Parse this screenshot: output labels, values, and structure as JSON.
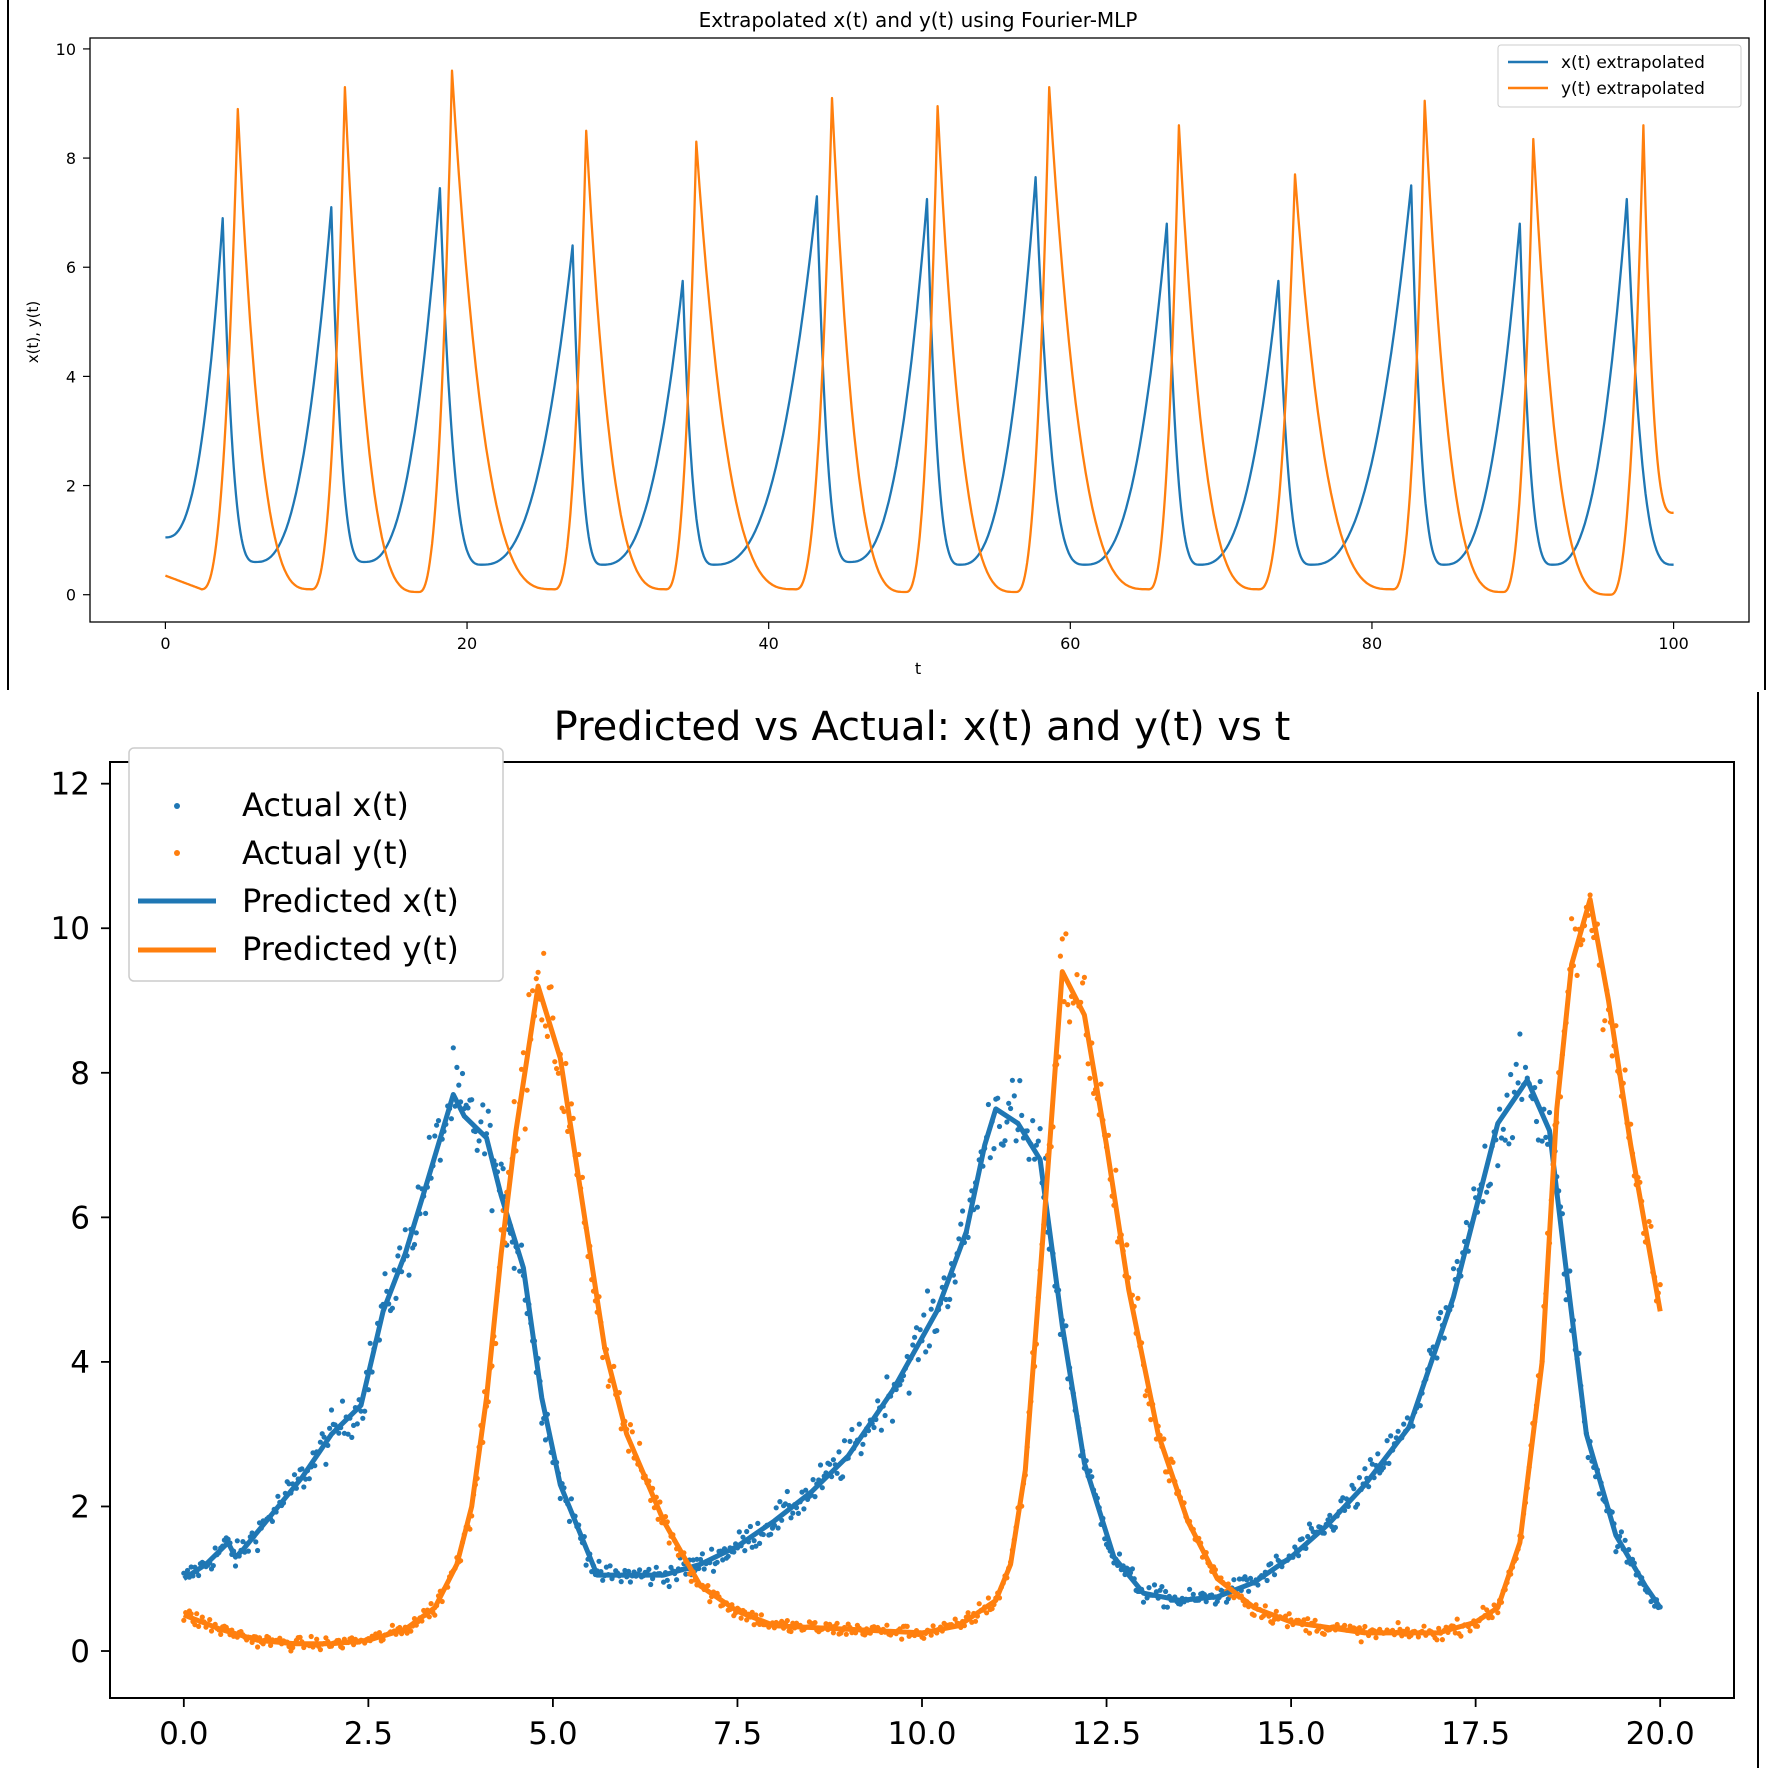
{
  "colors": {
    "series1": "#1f77b4",
    "series2": "#ff7f0e",
    "axis": "#000000",
    "legend_border": "#cccccc"
  },
  "chart_data": [
    {
      "type": "line",
      "title": "Extrapolated x(t) and y(t) using Fourier-MLP",
      "xlabel": "t",
      "ylabel": "x(t), y(t)",
      "xlim": [
        -5,
        105
      ],
      "ylim": [
        -0.5,
        10.2
      ],
      "xticks": [
        "0",
        "20",
        "40",
        "60",
        "80",
        "100"
      ],
      "yticks": [
        "0",
        "2",
        "4",
        "6",
        "8",
        "10"
      ],
      "grid": false,
      "legend_position": "top-right",
      "series": [
        {
          "name": "x(t) extrapolated",
          "peaks": [
            [
              3.8,
              6.9
            ],
            [
              11.0,
              7.1
            ],
            [
              18.2,
              7.45
            ],
            [
              27.0,
              6.4
            ],
            [
              34.3,
              5.75
            ],
            [
              43.2,
              7.3
            ],
            [
              50.5,
              7.25
            ],
            [
              57.7,
              7.65
            ],
            [
              66.4,
              6.8
            ],
            [
              73.8,
              5.75
            ],
            [
              82.6,
              7.5
            ],
            [
              89.8,
              6.8
            ],
            [
              96.9,
              7.25
            ]
          ],
          "troughs": [
            [
              0.0,
              1.05
            ],
            [
              6.0,
              0.6
            ],
            [
              13.2,
              0.6
            ],
            [
              21.0,
              0.55
            ],
            [
              29.0,
              0.55
            ],
            [
              36.4,
              0.55
            ],
            [
              45.4,
              0.6
            ],
            [
              52.7,
              0.55
            ],
            [
              61.0,
              0.55
            ],
            [
              68.6,
              0.55
            ],
            [
              76.0,
              0.55
            ],
            [
              84.8,
              0.55
            ],
            [
              92.0,
              0.55
            ],
            [
              100.0,
              0.55
            ]
          ]
        },
        {
          "name": "y(t) extrapolated",
          "peaks": [
            [
              4.8,
              8.9
            ],
            [
              11.9,
              9.3
            ],
            [
              19.0,
              9.6
            ],
            [
              27.9,
              8.5
            ],
            [
              35.2,
              8.3
            ],
            [
              44.2,
              9.1
            ],
            [
              51.2,
              8.95
            ],
            [
              58.6,
              9.3
            ],
            [
              67.2,
              8.6
            ],
            [
              74.9,
              7.7
            ],
            [
              83.5,
              9.05
            ],
            [
              90.7,
              8.35
            ],
            [
              98.0,
              8.6
            ]
          ],
          "troughs": [
            [
              0.0,
              0.35
            ],
            [
              2.4,
              0.1
            ],
            [
              9.7,
              0.1
            ],
            [
              16.8,
              0.05
            ],
            [
              25.8,
              0.1
            ],
            [
              33.2,
              0.1
            ],
            [
              41.8,
              0.1
            ],
            [
              49.1,
              0.05
            ],
            [
              56.4,
              0.05
            ],
            [
              65.2,
              0.1
            ],
            [
              72.5,
              0.1
            ],
            [
              81.4,
              0.1
            ],
            [
              88.7,
              0.05
            ],
            [
              95.8,
              0.0
            ],
            [
              100.0,
              1.5
            ]
          ]
        }
      ]
    },
    {
      "type": "scatter",
      "title": "Predicted vs Actual: x(t) and y(t) vs t",
      "xlabel": "",
      "ylabel": "",
      "xlim": [
        -1.0,
        21.0
      ],
      "ylim": [
        -0.65,
        12.3
      ],
      "xticks": [
        "0.0",
        "2.5",
        "5.0",
        "7.5",
        "10.0",
        "12.5",
        "15.0",
        "17.5",
        "20.0"
      ],
      "yticks": [
        "0",
        "2",
        "4",
        "6",
        "8",
        "10",
        "12"
      ],
      "grid": false,
      "legend_position": "top-left",
      "series": [
        {
          "name": "Actual x(t)",
          "kind": "scatter"
        },
        {
          "name": "Actual y(t)",
          "kind": "scatter"
        },
        {
          "name": "Predicted x(t)",
          "kind": "line",
          "x": [
            0.0,
            0.3,
            0.6,
            0.7,
            0.8,
            1.2,
            1.6,
            2.0,
            2.4,
            2.7,
            3.0,
            3.3,
            3.65,
            3.8,
            4.1,
            4.3,
            4.6,
            4.85,
            5.1,
            5.6,
            6.5,
            7.0,
            7.5,
            8.0,
            8.5,
            9.0,
            9.6,
            10.2,
            10.6,
            10.85,
            11.0,
            11.3,
            11.6,
            11.9,
            12.2,
            12.6,
            13.0,
            13.5,
            14.0,
            14.5,
            15.0,
            15.5,
            16.0,
            16.6,
            17.2,
            17.8,
            18.2,
            18.5,
            18.7,
            19.0,
            19.4,
            19.8,
            20.0
          ],
          "y": [
            1.0,
            1.2,
            1.5,
            1.3,
            1.4,
            1.9,
            2.4,
            3.0,
            3.4,
            4.7,
            5.5,
            6.5,
            7.7,
            7.4,
            7.1,
            6.3,
            5.3,
            3.5,
            2.3,
            1.05,
            1.05,
            1.2,
            1.45,
            1.8,
            2.2,
            2.7,
            3.6,
            4.7,
            5.8,
            7.0,
            7.5,
            7.3,
            6.8,
            4.5,
            2.6,
            1.3,
            0.8,
            0.7,
            0.75,
            0.95,
            1.3,
            1.75,
            2.3,
            3.1,
            4.9,
            7.3,
            7.9,
            7.2,
            5.5,
            3.0,
            1.6,
            0.9,
            0.6
          ]
        },
        {
          "name": "Predicted y(t)",
          "kind": "line",
          "x": [
            0.0,
            0.5,
            1.0,
            1.5,
            2.0,
            2.5,
            3.0,
            3.4,
            3.7,
            3.9,
            4.1,
            4.3,
            4.5,
            4.8,
            5.1,
            5.4,
            5.7,
            6.0,
            6.5,
            7.0,
            7.5,
            8.0,
            9.0,
            10.0,
            10.5,
            11.0,
            11.2,
            11.4,
            11.6,
            11.9,
            12.2,
            12.5,
            12.8,
            13.2,
            13.6,
            14.0,
            14.5,
            15.0,
            16.0,
            17.0,
            17.5,
            17.8,
            18.1,
            18.4,
            18.6,
            18.8,
            19.05,
            19.3,
            19.6,
            20.0
          ],
          "y": [
            0.5,
            0.3,
            0.15,
            0.1,
            0.1,
            0.15,
            0.3,
            0.6,
            1.2,
            2.0,
            3.5,
            5.5,
            7.2,
            9.2,
            8.2,
            6.2,
            4.2,
            3.0,
            1.8,
            0.9,
            0.55,
            0.35,
            0.3,
            0.25,
            0.35,
            0.7,
            1.2,
            2.5,
            5.2,
            9.4,
            8.8,
            7.0,
            5.0,
            3.0,
            1.8,
            1.0,
            0.6,
            0.4,
            0.25,
            0.25,
            0.4,
            0.6,
            1.5,
            4.0,
            7.5,
            9.5,
            10.4,
            9.0,
            7.0,
            4.7
          ]
        }
      ]
    }
  ]
}
